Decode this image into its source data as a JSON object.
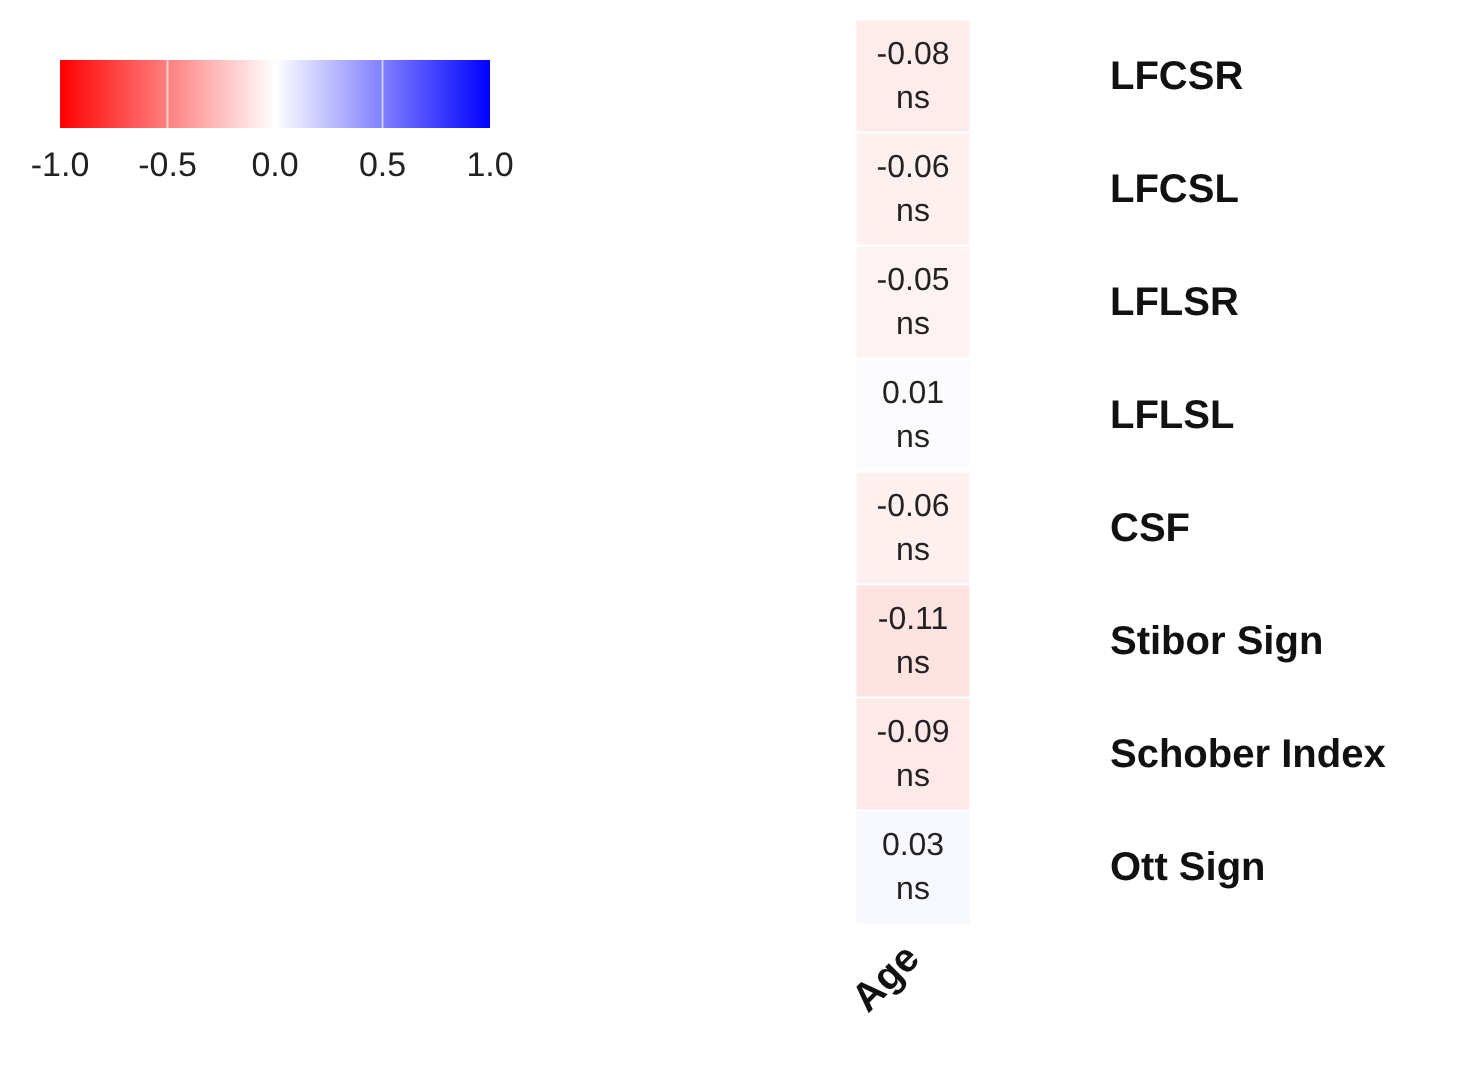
{
  "chart_data": {
    "type": "heatmap",
    "categories": [
      "Age"
    ],
    "y_categories": [
      "LFCSR",
      "LFCSL",
      "LFLSR",
      "LFLSL",
      "CSF",
      "Stibor Sign",
      "Schober Index",
      "Ott Sign"
    ],
    "cells": [
      [
        -0.08
      ],
      [
        -0.06
      ],
      [
        -0.05
      ],
      [
        0.01
      ],
      [
        -0.06
      ],
      [
        -0.11
      ],
      [
        -0.09
      ],
      [
        0.03
      ]
    ],
    "cell_labels": [
      [
        "-0.08\nns"
      ],
      [
        "-0.06\nns"
      ],
      [
        "-0.05\nns"
      ],
      [
        "0.01\nns"
      ],
      [
        "-0.06\nns"
      ],
      [
        "-0.11\nns"
      ],
      [
        "-0.09\nns"
      ],
      [
        "0.03\nns"
      ]
    ],
    "clim": [
      -1,
      1
    ],
    "cticks": [
      {
        "value": -1,
        "label": "-1.0"
      },
      {
        "value": -0.5,
        "label": "-0.5"
      },
      {
        "value": 0,
        "label": "0.0"
      },
      {
        "value": 0.5,
        "label": "0.5"
      },
      {
        "value": 1,
        "label": "1.0"
      }
    ]
  }
}
